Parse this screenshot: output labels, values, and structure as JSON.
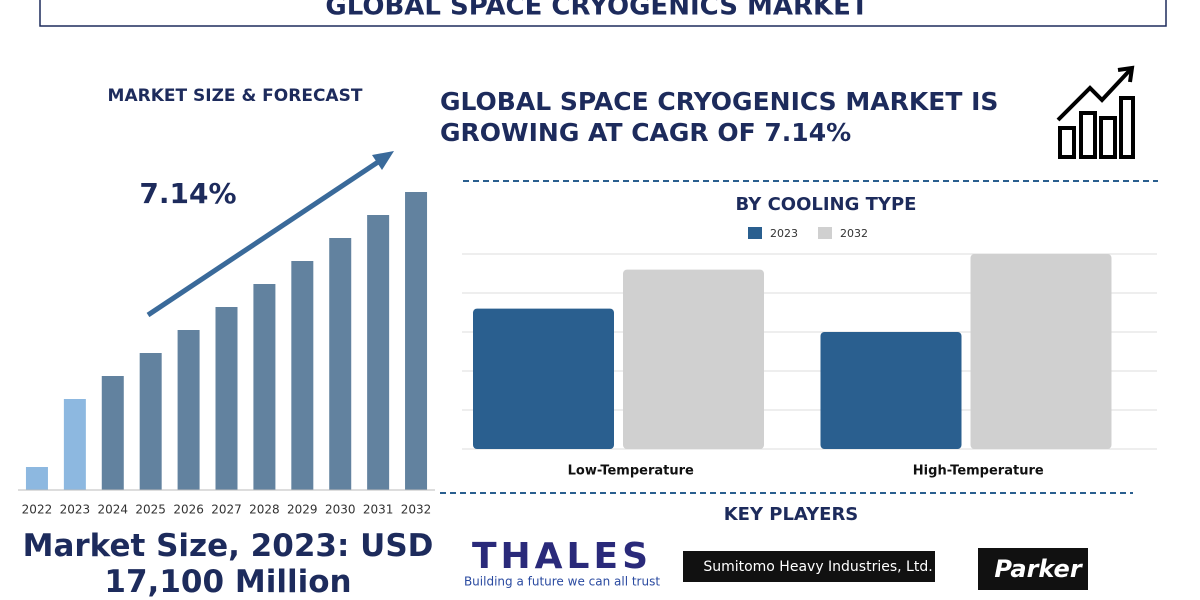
{
  "header": {
    "title": "GLOBAL SPACE CRYOGENICS MARKET"
  },
  "chart_data": [
    {
      "type": "bar",
      "title": "MARKET SIZE & FORECAST",
      "categories": [
        "2022",
        "2023",
        "2024",
        "2025",
        "2026",
        "2027",
        "2028",
        "2029",
        "2030",
        "2031",
        "2032"
      ],
      "values": [
        23,
        91,
        114,
        137,
        160,
        183,
        206,
        229,
        252,
        275,
        298
      ],
      "colors": [
        "#8db8e0",
        "#8db8e0",
        "#62829f",
        "#62829f",
        "#62829f",
        "#62829f",
        "#62829f",
        "#62829f",
        "#62829f",
        "#62829f",
        "#62829f"
      ],
      "ylim": [
        0,
        300
      ],
      "annotation": "7.14%"
    },
    {
      "type": "grouped-bar",
      "title": "BY COOLING TYPE",
      "categories": [
        "Low-Temperature",
        "High-Temperature"
      ],
      "series": [
        {
          "name": "2023",
          "color": "#2a5f8f",
          "values": [
            3.6,
            3.0
          ]
        },
        {
          "name": "2032",
          "color": "#d0d0d0",
          "values": [
            4.6,
            5.0
          ]
        }
      ],
      "ylim": [
        0,
        5
      ],
      "yticks": [
        0,
        1,
        2,
        3,
        4,
        5
      ],
      "grid": true,
      "legend": "top"
    }
  ],
  "headline": "GLOBAL SPACE CRYOGENICS MARKET IS GROWING AT CAGR OF 7.14%",
  "market_size": "Market Size, 2023: USD 17,100 Million",
  "key_players": {
    "title": "KEY PLAYERS",
    "logos": [
      "THALES",
      "Building a future we can all trust",
      "Sumitomo Heavy Industries, Ltd.",
      "Parker"
    ]
  }
}
